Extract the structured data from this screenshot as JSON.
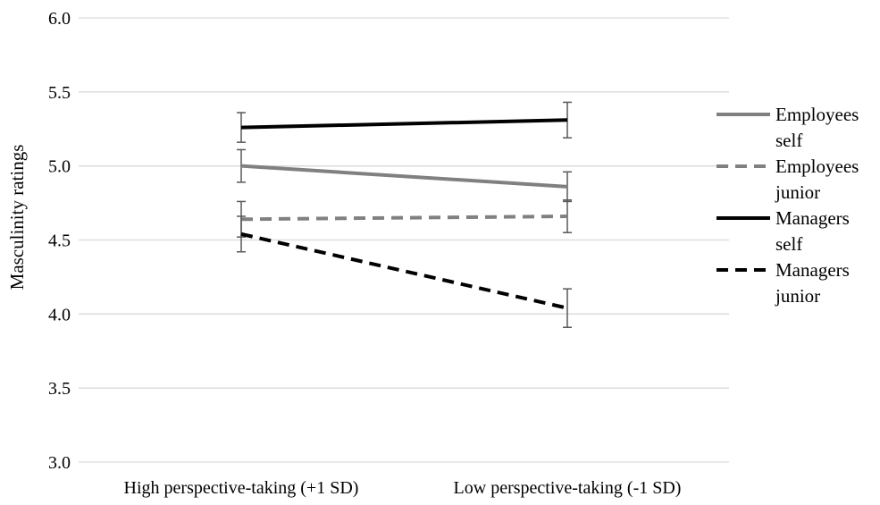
{
  "chart_data": {
    "type": "line",
    "title": "",
    "xlabel": "",
    "ylabel": "Masculinity ratings",
    "categories": [
      "High perspective-taking (+1 SD)",
      "Low perspective-taking (-1 SD)"
    ],
    "ylim": [
      3.0,
      6.0
    ],
    "yticks": [
      "3.0",
      "3.5",
      "4.0",
      "4.5",
      "5.0",
      "5.5",
      "6.0"
    ],
    "grid": "horizontal",
    "legend_position": "right",
    "series": [
      {
        "name": "Employees self",
        "name_lines": [
          "Employees",
          "self"
        ],
        "values": [
          5.0,
          4.86
        ],
        "error": [
          0.11,
          0.1
        ],
        "color": "#808080",
        "dash": "solid"
      },
      {
        "name": "Employees junior",
        "name_lines": [
          "Employees",
          "junior"
        ],
        "values": [
          4.64,
          4.66
        ],
        "error": [
          0.12,
          0.11
        ],
        "color": "#808080",
        "dash": "dashed"
      },
      {
        "name": "Managers self",
        "name_lines": [
          "Managers",
          "self"
        ],
        "values": [
          5.26,
          5.31
        ],
        "error": [
          0.1,
          0.12
        ],
        "color": "#000000",
        "dash": "solid"
      },
      {
        "name": "Managers junior",
        "name_lines": [
          "Managers",
          "junior"
        ],
        "values": [
          4.54,
          4.04
        ],
        "error": [
          0.12,
          0.13
        ],
        "color": "#000000",
        "dash": "dashed"
      }
    ]
  }
}
